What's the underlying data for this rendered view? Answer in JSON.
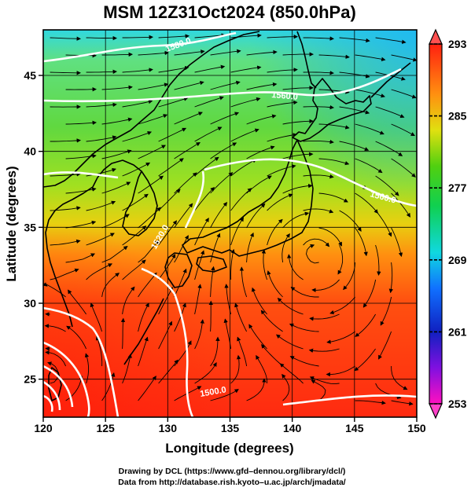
{
  "title": "MSM 12Z31Oct2024 (850.0hPa)",
  "x_axis": {
    "label": "Longitude (degrees)",
    "range": [
      120,
      150
    ],
    "ticks": [
      "120",
      "125",
      "130",
      "135",
      "140",
      "145",
      "150"
    ]
  },
  "y_axis": {
    "label": "Latitude (degrees)",
    "range": [
      22.5,
      48
    ],
    "ticks": [
      "25",
      "30",
      "35",
      "40",
      "45"
    ]
  },
  "colorbar": {
    "range": [
      253,
      293
    ],
    "ticks": [
      "253",
      "261",
      "269",
      "277",
      "285",
      "293"
    ]
  },
  "contour_labels": [
    "1500.0",
    "1520.0",
    "1560.0",
    "1560.0",
    "1580.0"
  ],
  "credits": {
    "line1": "Drawing by DCL (https://www.gfd–dennou.org/library/dcl/)",
    "line2": "Data from http://database.rish.kyoto–u.ac.jp/arch/jmadata/"
  },
  "colors": {
    "warm": "#ff3a10",
    "mid": "#a8e020",
    "cool": "#20d0e8",
    "coastline": "#000000",
    "contour": "#ffffff"
  }
}
